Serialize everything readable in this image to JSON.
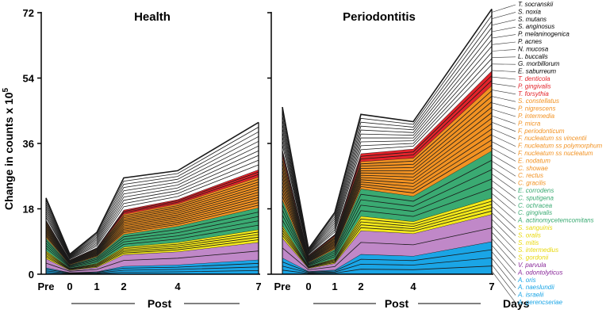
{
  "chart_data": {
    "type": "area",
    "stacked": true,
    "ylabel": "Change in counts x 10",
    "ylabel_exponent": "5",
    "ylim": [
      0,
      72
    ],
    "yticks": [
      0,
      18,
      36,
      54,
      72
    ],
    "x_positions": [
      -1,
      0,
      1,
      2,
      4,
      7
    ],
    "x_labels": [
      "Pre",
      "0",
      "1",
      "2",
      "4",
      "7"
    ],
    "xlabel": "Post",
    "days_label": "Days",
    "groups": [
      {
        "name": "Blue complex",
        "color": "#1aa5e6",
        "species": [
          "A. gerencseriae",
          "A. israelii",
          "A. naeslundii",
          "A. oris"
        ]
      },
      {
        "name": "Purple complex",
        "color": "#c088c8",
        "species": [
          "A. odontolyticus",
          "V. parvula"
        ]
      },
      {
        "name": "Yellow complex",
        "color": "#f5ea1a",
        "species": [
          "S. gordonii",
          "S. intermedius",
          "S. mitis",
          "S. oralis",
          "S. sanguinis"
        ]
      },
      {
        "name": "Green complex",
        "color": "#3aaa72",
        "species": [
          "A. actinomycetemcomitans",
          "C. gingivalis",
          "C. ochracea",
          "C. sputigena",
          "E. corrodens"
        ]
      },
      {
        "name": "Orange complex",
        "color": "#f29222",
        "species": [
          "C. gracilis",
          "C. rectus",
          "C. showae",
          "E. nodatum",
          "F. nucleatum ss nucleatum",
          "F. nucleatum ss polymorphum",
          "F. nucleatum ss vincentii",
          "F. periodonticum",
          "P. micra",
          "P. intermedia",
          "P. nigrescens",
          "S. constellatus"
        ]
      },
      {
        "name": "Red complex",
        "color": "#e3242b",
        "species": [
          "T. forsythia",
          "P. gingivalis",
          "T. denticola"
        ]
      },
      {
        "name": "Other",
        "color": "#ffffff",
        "species": [
          "E. saburreum",
          "G. morbillorum",
          "L. buccalis",
          "N. mucosa",
          "P. acnes",
          "P. melaninogenica",
          "S. anginosus",
          "S. mutans",
          "S. noxia",
          "T. socranskii"
        ]
      }
    ],
    "legend": [
      {
        "label": "T. socranskii",
        "color": "#000000"
      },
      {
        "label": "S. noxia",
        "color": "#000000"
      },
      {
        "label": "S. mutans",
        "color": "#000000"
      },
      {
        "label": "S. anginosus",
        "color": "#000000"
      },
      {
        "label": "P. melaninogenica",
        "color": "#000000"
      },
      {
        "label": "P. acnes",
        "color": "#000000"
      },
      {
        "label": "N. mucosa",
        "color": "#000000"
      },
      {
        "label": "L. buccalis",
        "color": "#000000"
      },
      {
        "label": "G. morbillorum",
        "color": "#000000"
      },
      {
        "label": "E. saburreum",
        "color": "#000000"
      },
      {
        "label": "T. denticola",
        "color": "#e3242b"
      },
      {
        "label": "P. gingivalis",
        "color": "#e3242b"
      },
      {
        "label": "T. forsythia",
        "color": "#e3242b"
      },
      {
        "label": "S. constellatus",
        "color": "#f29222"
      },
      {
        "label": "P. nigrescens",
        "color": "#f29222"
      },
      {
        "label": "P. intermedia",
        "color": "#f29222"
      },
      {
        "label": "P. micra",
        "color": "#f29222"
      },
      {
        "label": "F. periodonticum",
        "color": "#f29222"
      },
      {
        "label": "F. nucleatum ss vincentii",
        "color": "#f29222"
      },
      {
        "label": "F. nucleatum ss polymorphum",
        "color": "#f29222"
      },
      {
        "label": "F. nucleatum ss nucleatum",
        "color": "#f29222"
      },
      {
        "label": "E. nodatum",
        "color": "#f29222"
      },
      {
        "label": "C. showae",
        "color": "#f29222"
      },
      {
        "label": "C. rectus",
        "color": "#f29222"
      },
      {
        "label": "C. gracilis",
        "color": "#f29222"
      },
      {
        "label": "E. corrodens",
        "color": "#3aaa72"
      },
      {
        "label": "C. sputigena",
        "color": "#3aaa72"
      },
      {
        "label": "C. ochracea",
        "color": "#3aaa72"
      },
      {
        "label": "C. gingivalis",
        "color": "#3aaa72"
      },
      {
        "label": "A. actinomycetemcomitans",
        "color": "#3aaa72"
      },
      {
        "label": "S. sanguinis",
        "color": "#e8d80a"
      },
      {
        "label": "S. oralis",
        "color": "#e8d80a"
      },
      {
        "label": "S. mitis",
        "color": "#e8d80a"
      },
      {
        "label": "S. intermedius",
        "color": "#e8d80a"
      },
      {
        "label": "S. gordonii",
        "color": "#e8d80a"
      },
      {
        "label": "V. parvula",
        "color": "#8a2a9a"
      },
      {
        "label": "A. odontolyticus",
        "color": "#8a2a9a"
      },
      {
        "label": "A. oris",
        "color": "#1aa5e6"
      },
      {
        "label": "A. naeslundii",
        "color": "#1aa5e6"
      },
      {
        "label": "A. israelii",
        "color": "#1aa5e6"
      },
      {
        "label": "A. gerencseriae",
        "color": "#1aa5e6"
      }
    ],
    "panels": [
      {
        "title": "Health",
        "series": [
          {
            "name": "Blue complex",
            "values": [
              1.8,
              0.5,
              0.7,
              2.2,
              2.6,
              4.0
            ]
          },
          {
            "name": "Purple complex",
            "values": [
              2.5,
              0.6,
              1.2,
              3.2,
              3.6,
              4.8
            ]
          },
          {
            "name": "Yellow complex",
            "values": [
              2.2,
              0.6,
              1.1,
              2.1,
              2.6,
              3.5
            ]
          },
          {
            "name": "Green complex",
            "values": [
              3.5,
              0.9,
              1.8,
              3.5,
              4.4,
              6.0
            ]
          },
          {
            "name": "Orange complex",
            "values": [
              4.5,
              1.2,
              2.2,
              5.5,
              6.2,
              8.5
            ]
          },
          {
            "name": "Red complex",
            "values": [
              0.5,
              0.2,
              0.3,
              1.2,
              1.2,
              2.0
            ]
          },
          {
            "name": "Other",
            "values": [
              6.0,
              1.5,
              4.2,
              8.8,
              7.9,
              13.0
            ]
          }
        ]
      },
      {
        "title": "Periodontitis",
        "series": [
          {
            "name": "Blue complex",
            "values": [
              4.5,
              0.8,
              1.2,
              5.5,
              5.0,
              9.0
            ]
          },
          {
            "name": "Purple complex",
            "values": [
              5.5,
              0.8,
              1.8,
              6.5,
              6.2,
              7.5
            ]
          },
          {
            "name": "Yellow complex",
            "values": [
              3.5,
              0.6,
              1.3,
              4.0,
              3.3,
              4.5
            ]
          },
          {
            "name": "Green complex",
            "values": [
              7.0,
              1.0,
              2.6,
              7.5,
              7.0,
              13.0
            ]
          },
          {
            "name": "Orange complex",
            "values": [
              12.0,
              1.8,
              3.5,
              7.5,
              10.5,
              18.0
            ]
          },
          {
            "name": "Red complex",
            "values": [
              2.0,
              0.3,
              0.6,
              2.2,
              2.5,
              4.0
            ]
          },
          {
            "name": "Other",
            "values": [
              11.5,
              1.7,
              6.0,
              10.8,
              7.5,
              17.0
            ]
          }
        ]
      }
    ]
  }
}
